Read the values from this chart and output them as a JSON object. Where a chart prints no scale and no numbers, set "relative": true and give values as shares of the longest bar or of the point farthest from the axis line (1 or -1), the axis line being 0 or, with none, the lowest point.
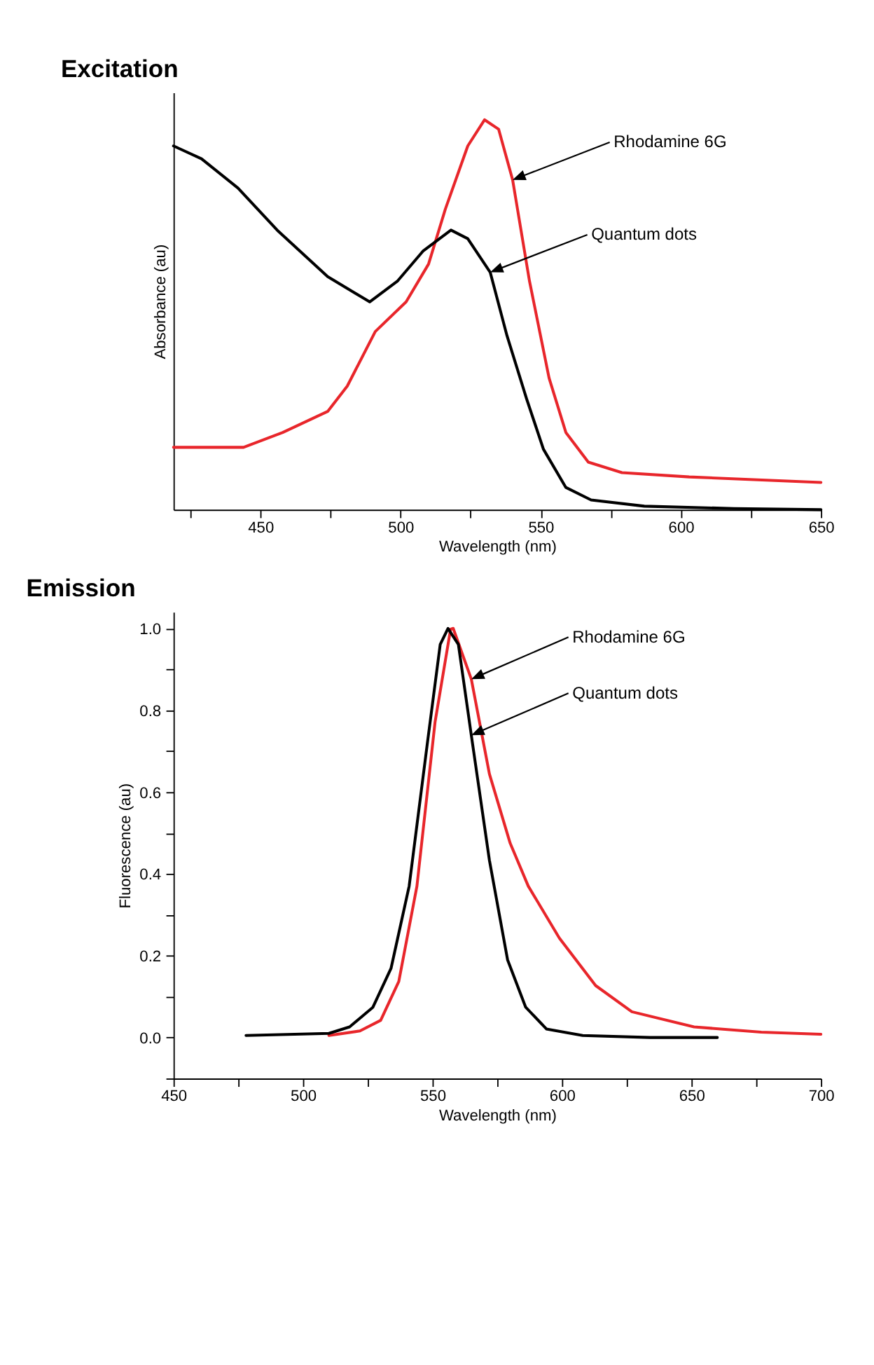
{
  "chart_data": [
    {
      "type": "line",
      "title": "Excitation",
      "xlabel": "Wavelength (nm)",
      "ylabel": "Absorbance (au)",
      "relative": true,
      "tick_labels": "x",
      "xlim": [
        419,
        650
      ],
      "xticks": [
        {
          "value": 425,
          "label": null
        },
        450,
        {
          "value": 475,
          "label": null
        },
        500,
        {
          "value": 525,
          "label": null
        },
        550,
        {
          "value": 575,
          "label": null
        },
        600,
        {
          "value": 625,
          "label": null
        },
        650
      ],
      "series": [
        {
          "color": "#e8262b",
          "x": [
            419,
            444,
            458,
            474,
            481,
            491,
            502,
            510,
            516,
            524,
            530,
            535,
            540,
            546,
            553,
            559,
            567,
            579,
            603,
            650
          ],
          "values": [
            0.16,
            0.16,
            0.198,
            0.252,
            0.317,
            0.457,
            0.533,
            0.63,
            0.771,
            0.933,
            1.0,
            0.976,
            0.846,
            0.587,
            0.338,
            0.198,
            0.122,
            0.095,
            0.084,
            0.07
          ]
        },
        {
          "color": "#000000",
          "x": [
            419,
            429,
            442,
            456,
            474,
            489,
            499,
            508,
            518,
            524,
            532,
            538,
            545,
            551,
            559,
            568,
            587,
            619,
            650
          ],
          "values": [
            0.933,
            0.9,
            0.825,
            0.717,
            0.598,
            0.533,
            0.587,
            0.663,
            0.717,
            0.695,
            0.609,
            0.446,
            0.284,
            0.155,
            0.057,
            0.025,
            0.009,
            0.003,
            0.0
          ]
        }
      ],
      "annotations": [
        "Rhodamine 6G",
        "Quantum dots"
      ]
    },
    {
      "type": "line",
      "title": "Emission",
      "xlabel": "Wavelength (nm)",
      "ylabel": "Fluorescence (au)",
      "xlim": [
        450,
        700
      ],
      "xticks": [
        450,
        {
          "value": 475,
          "label": null
        },
        500,
        {
          "value": 525,
          "label": null
        },
        550,
        {
          "value": 575,
          "label": null
        },
        600,
        {
          "value": 625,
          "label": null
        },
        650,
        {
          "value": 675,
          "label": null
        },
        700
      ],
      "ylim": [
        -0.1,
        1.04
      ],
      "yticks": [
        {
          "value": -0.1,
          "label": null
        },
        {
          "value": 0,
          "label": "0.0"
        },
        {
          "value": 0.1,
          "label": null
        },
        0.2,
        {
          "value": 0.3,
          "label": null
        },
        0.4,
        {
          "value": 0.5,
          "label": null
        },
        0.6,
        {
          "value": 0.7,
          "label": null
        },
        0.8,
        {
          "value": 0.9,
          "label": null
        },
        {
          "value": 1,
          "label": "1.0"
        }
      ],
      "series": [
        {
          "color": "#e8262b",
          "x": [
            510,
            522,
            530,
            537,
            544,
            551,
            557,
            558,
            565,
            572,
            580,
            587,
            599,
            613,
            627,
            651,
            677,
            700
          ],
          "values": [
            0.005,
            0.016,
            0.042,
            0.137,
            0.37,
            0.771,
            0.998,
            1.0,
            0.876,
            0.644,
            0.475,
            0.37,
            0.243,
            0.127,
            0.063,
            0.026,
            0.013,
            0.008
          ]
        },
        {
          "color": "#000000",
          "x": [
            478,
            510,
            518,
            527,
            534,
            541,
            548,
            553,
            556,
            560,
            565,
            572,
            579,
            586,
            594,
            608,
            634,
            660
          ],
          "values": [
            0.005,
            0.01,
            0.026,
            0.074,
            0.169,
            0.37,
            0.718,
            0.961,
            1.0,
            0.961,
            0.739,
            0.433,
            0.19,
            0.074,
            0.021,
            0.005,
            0.0,
            0.0
          ]
        }
      ],
      "annotations": [
        "Rhodamine 6G",
        "Quantum dots"
      ]
    }
  ]
}
